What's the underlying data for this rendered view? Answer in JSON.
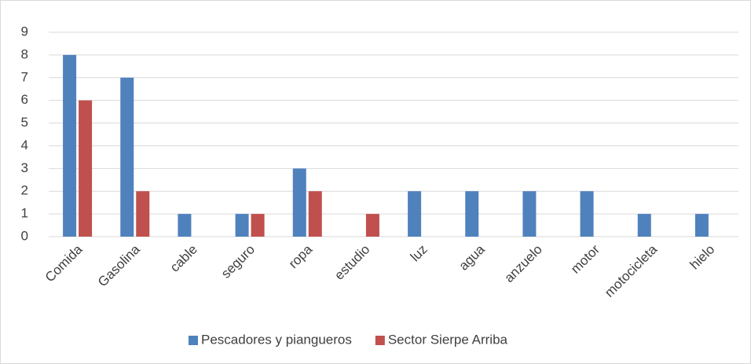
{
  "chart_data": {
    "type": "bar",
    "categories": [
      "Comida",
      "Gasolina",
      "cable",
      "seguro",
      "ropa",
      "estudio",
      "luz",
      "agua",
      "anzuelo",
      "motor",
      "motocicleta",
      "hielo"
    ],
    "series": [
      {
        "name": "Pescadores y piangueros",
        "color": "#4f81bd",
        "values": [
          8,
          7,
          1,
          1,
          3,
          0,
          2,
          2,
          2,
          2,
          1,
          1
        ]
      },
      {
        "name": "Sector Sierpe Arriba",
        "color": "#c0504d",
        "values": [
          6,
          2,
          0,
          1,
          2,
          1,
          0,
          0,
          0,
          0,
          0,
          0
        ]
      }
    ],
    "ylim": [
      0,
      9
    ],
    "yticks": [
      0,
      1,
      2,
      3,
      4,
      5,
      6,
      7,
      8,
      9
    ],
    "grid": true,
    "legend": "bottom"
  }
}
